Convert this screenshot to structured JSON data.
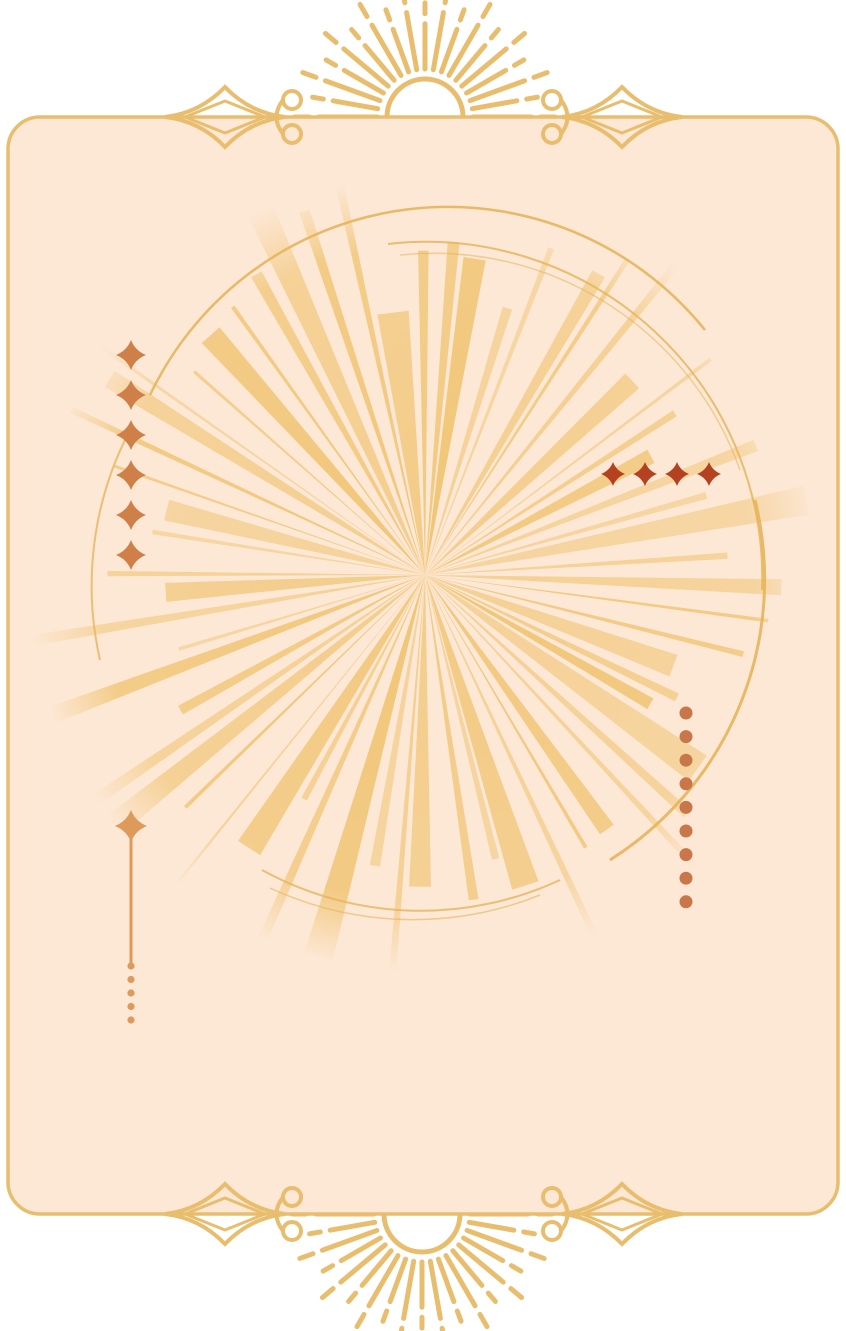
{
  "palette": {
    "card_fill": "#fde8d6",
    "frame_gold": "#e8be6e",
    "ray_gold": "#f0c36f",
    "ring_gold": "#e6b45a",
    "sparkle_orange": "#cf7f48",
    "sparkle_red": "#b4411f",
    "dot_brown": "#c9774a"
  },
  "decor": {
    "left_sparkles_count": 6,
    "right_sparkles_count": 4,
    "right_dots_count": 9,
    "wand_dots_count": 5,
    "icons": [
      "sunburst-icon",
      "ornament-icon",
      "sparkle-icon",
      "dot-icon",
      "wand-icon"
    ]
  }
}
